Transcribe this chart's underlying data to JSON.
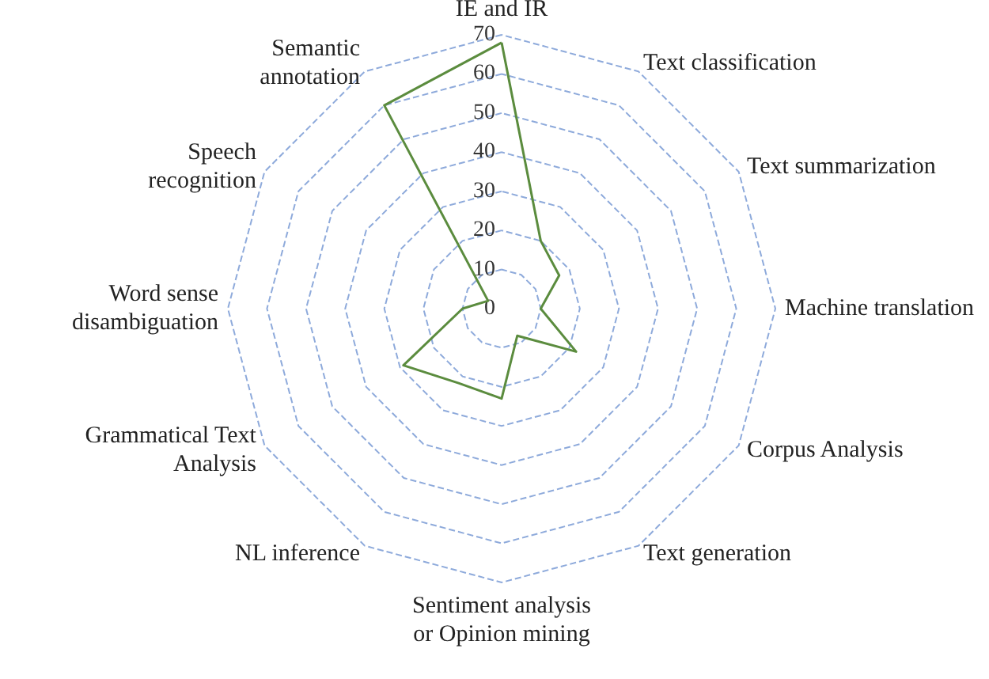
{
  "chart_data": {
    "type": "radar",
    "categories": [
      "IE and IR",
      "Text classification",
      "Text summarization",
      "Machine translation",
      "Corpus Analysis",
      "Text generation",
      "Sentiment analysis\nor Opinion mining",
      "NL inference",
      "Grammatical Text\nAnalysis",
      "Word sense\ndisambiguation",
      "Speech\nrecognition",
      "Semantic\nannotation"
    ],
    "series": [
      {
        "color": "#5b8c3e",
        "values": [
          68,
          20,
          17,
          10,
          22,
          8,
          23,
          22,
          29,
          10,
          4,
          60
        ]
      }
    ],
    "ylim": [
      0,
      70
    ],
    "yticks": [
      0,
      10,
      20,
      30,
      40,
      50,
      60,
      70
    ],
    "grid": true,
    "marker": "none",
    "line_style": "solid",
    "legend": false
  }
}
